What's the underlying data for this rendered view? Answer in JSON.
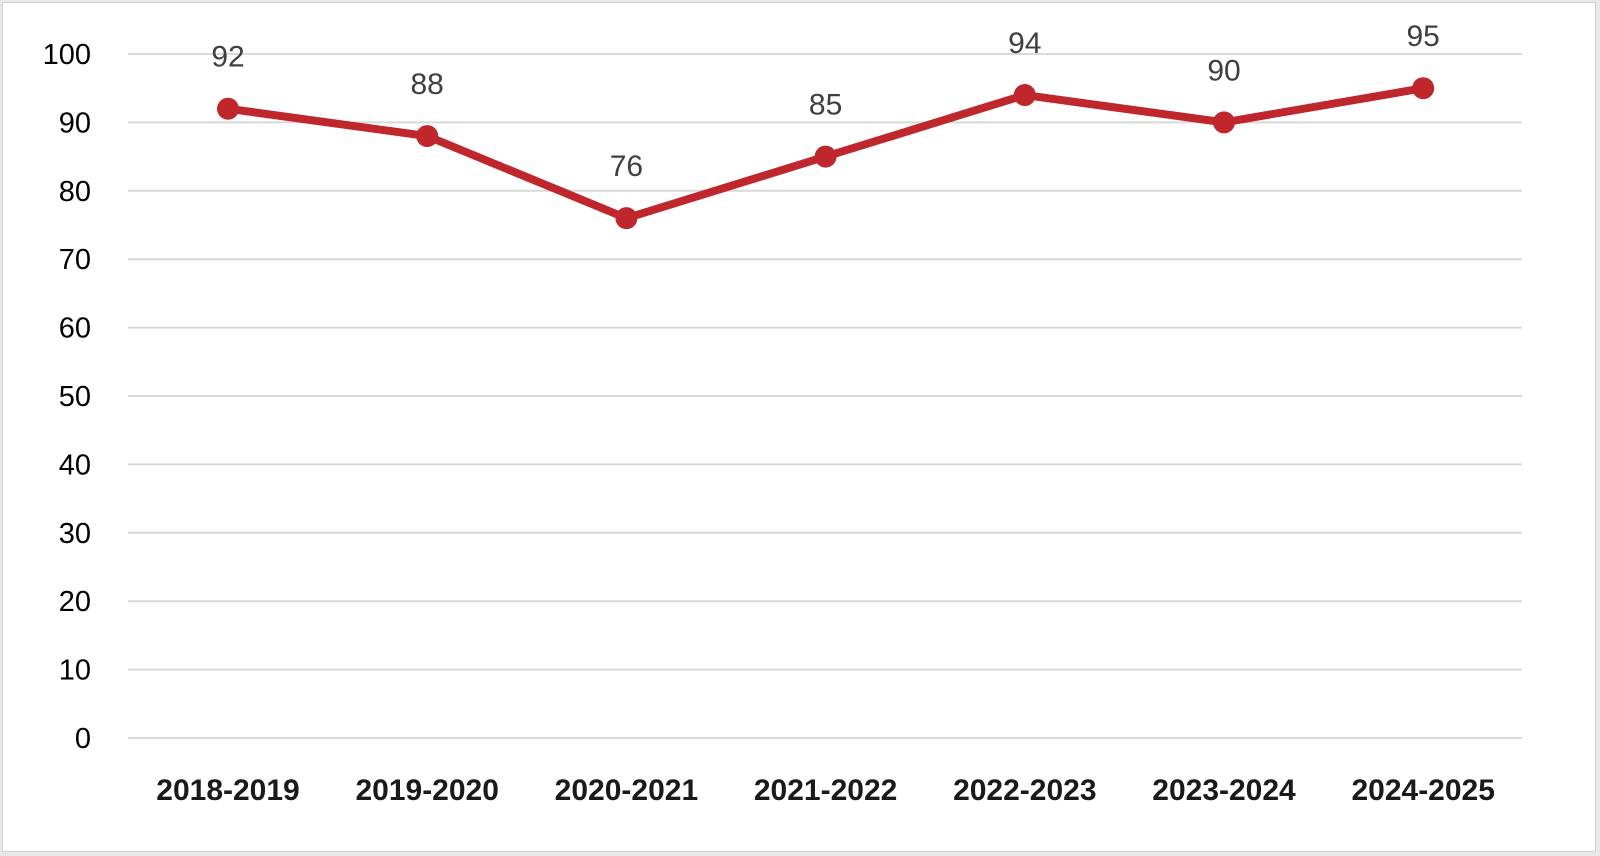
{
  "chart_data": {
    "type": "line",
    "title": "",
    "xlabel": "",
    "ylabel": "",
    "categories": [
      "2018-2019",
      "2019-2020",
      "2020-2021",
      "2021-2022",
      "2022-2023",
      "2023-2024",
      "2024-2025"
    ],
    "series": [
      {
        "values": [
          92,
          88,
          76,
          85,
          94,
          90,
          95
        ],
        "color": "#c0272d"
      }
    ],
    "data_labels": [
      "92",
      "88",
      "76",
      "85",
      "94",
      "90",
      "95"
    ],
    "ylim": [
      0,
      100
    ],
    "yticks": [
      "0",
      "10",
      "20",
      "30",
      "40",
      "50",
      "60",
      "70",
      "80",
      "90",
      "100"
    ],
    "grid": true,
    "legend": "none"
  }
}
